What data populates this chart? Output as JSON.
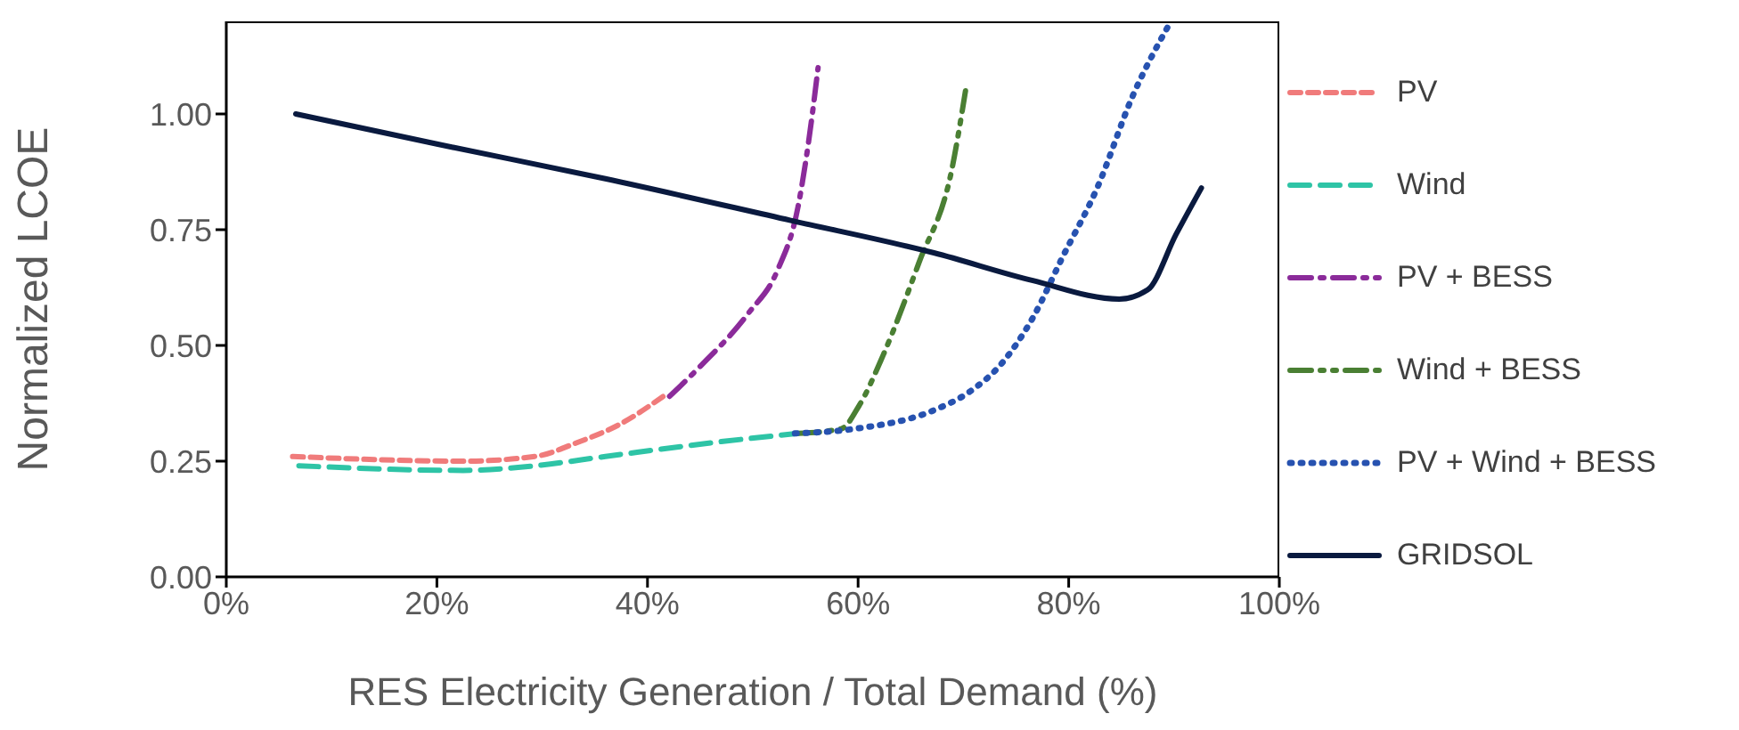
{
  "chart_data": {
    "type": "line",
    "xlabel": "RES Electricity Generation / Total Demand (%)",
    "ylabel": "Normalized LCOE",
    "xlim": [
      0,
      100
    ],
    "xticks": [
      {
        "value": 0,
        "label": "0%"
      },
      {
        "value": 20,
        "label": "20%"
      },
      {
        "value": 40,
        "label": "40%"
      },
      {
        "value": 60,
        "label": "60%"
      },
      {
        "value": 80,
        "label": "80%"
      },
      {
        "value": 100,
        "label": "100%"
      }
    ],
    "ylim": [
      0,
      1.2
    ],
    "yticks": [
      {
        "value": 0,
        "label": "0.00"
      },
      {
        "value": 0.25,
        "label": "0.25"
      },
      {
        "value": 0.5,
        "label": "0.50"
      },
      {
        "value": 0.75,
        "label": "0.75"
      },
      {
        "value": 1,
        "label": "1.00"
      }
    ],
    "legend": "right",
    "marker": "none",
    "series": [
      {
        "name": "PV",
        "color": "#f07b7b",
        "line_style": "dashed",
        "x": [
          6.3,
          22.5,
          29.3,
          33.3,
          37.4,
          41.5
        ],
        "values": [
          0.26,
          0.25,
          0.26,
          0.29,
          0.33,
          0.39
        ]
      },
      {
        "name": "Wind",
        "color": "#2ec4a6",
        "line_style": "longdash",
        "x": [
          6.9,
          22.5,
          29.3,
          36.0,
          46.2,
          54.3
        ],
        "values": [
          0.24,
          0.23,
          0.24,
          0.26,
          0.29,
          0.31
        ]
      },
      {
        "name": "PV + BESS",
        "color": "#8b2b9a",
        "line_style": "dashdot",
        "x": [
          42.1,
          44.8,
          49.6,
          52.3,
          54.3,
          55.3,
          56.2
        ],
        "values": [
          0.39,
          0.45,
          0.57,
          0.66,
          0.8,
          0.94,
          1.1
        ]
      },
      {
        "name": "Wind + BESS",
        "color": "#4a7f33",
        "line_style": "dashdotdot",
        "x": [
          54.3,
          58.4,
          60.1,
          62.4,
          65.8,
          68.9,
          70.2
        ],
        "values": [
          0.31,
          0.32,
          0.37,
          0.48,
          0.68,
          0.88,
          1.05
        ]
      },
      {
        "name": "PV + Wind + BESS",
        "color": "#2752b0",
        "line_style": "dotted",
        "x": [
          54.0,
          59.7,
          67.2,
          70.6,
          73.6,
          76.6,
          79.4,
          82.7,
          86.1,
          89.7
        ],
        "values": [
          0.31,
          0.32,
          0.36,
          0.4,
          0.46,
          0.56,
          0.69,
          0.84,
          1.04,
          1.2
        ]
      },
      {
        "name": "GRIDSOL",
        "color": "#0a1a3f",
        "line_style": "solid",
        "x": [
          6.6,
          20,
          36.0,
          53.6,
          67.2,
          76.6,
          84.8,
          87.5,
          90.2,
          92.6
        ],
        "values": [
          1.0,
          0.935,
          0.86,
          0.77,
          0.7,
          0.64,
          0.6,
          0.62,
          0.74,
          0.84
        ]
      }
    ]
  }
}
